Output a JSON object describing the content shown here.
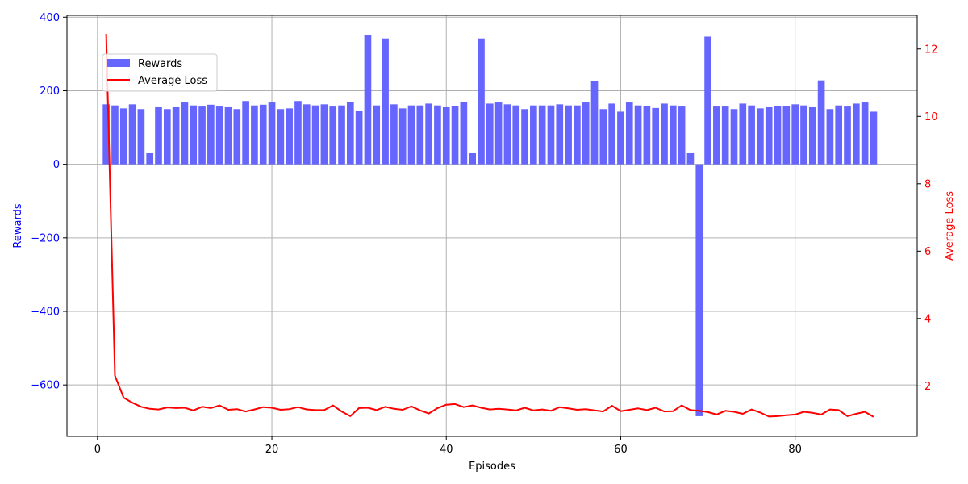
{
  "chart_data": {
    "type": "bar",
    "title": "",
    "xlabel": "Episodes",
    "ylabel_left": "Rewards",
    "ylabel_right": "Average Loss",
    "xlim": [
      -3.5,
      94
    ],
    "ylim_left": [
      -740,
      405
    ],
    "ylim_right": [
      0.5,
      13.0
    ],
    "x_ticks": [
      0,
      20,
      40,
      60,
      80
    ],
    "y_left_ticks": [
      -600,
      -400,
      -200,
      0,
      200,
      400
    ],
    "y_right_ticks": [
      2,
      4,
      6,
      8,
      10,
      12
    ],
    "grid": true,
    "legend_position": "upper-left",
    "colors": {
      "bars": "#6666ff",
      "loss_line": "#ff0000",
      "left_axis": "#0000ff",
      "right_axis": "#ff0000",
      "grid": "#b0b0b0"
    },
    "episodes": [
      1,
      2,
      3,
      4,
      5,
      6,
      7,
      8,
      9,
      10,
      11,
      12,
      13,
      14,
      15,
      16,
      17,
      18,
      19,
      20,
      21,
      22,
      23,
      24,
      25,
      26,
      27,
      28,
      29,
      30,
      31,
      32,
      33,
      34,
      35,
      36,
      37,
      38,
      39,
      40,
      41,
      42,
      43,
      44,
      45,
      46,
      47,
      48,
      49,
      50,
      51,
      52,
      53,
      54,
      55,
      56,
      57,
      58,
      59,
      60,
      61,
      62,
      63,
      64,
      65,
      66,
      67,
      68,
      69,
      70,
      71,
      72,
      73,
      74,
      75,
      76,
      77,
      78,
      79,
      80,
      81,
      82,
      83,
      84,
      85,
      86,
      87,
      88,
      89
    ],
    "series": [
      {
        "name": "Rewards",
        "axis": "left",
        "kind": "bar",
        "values": [
          163,
          160,
          152,
          163,
          150,
          30,
          155,
          150,
          155,
          168,
          160,
          157,
          162,
          157,
          155,
          150,
          172,
          160,
          162,
          168,
          150,
          152,
          172,
          163,
          160,
          163,
          157,
          160,
          170,
          145,
          352,
          160,
          342,
          163,
          152,
          160,
          160,
          165,
          160,
          155,
          158,
          170,
          30,
          342,
          165,
          168,
          163,
          160,
          150,
          160,
          160,
          160,
          163,
          160,
          160,
          168,
          227,
          150,
          165,
          143,
          168,
          160,
          158,
          153,
          165,
          160,
          157,
          30,
          -685,
          347,
          157,
          157,
          150,
          165,
          160,
          152,
          155,
          158,
          158,
          163,
          160,
          155,
          228,
          150,
          160,
          157,
          165,
          168,
          143
        ]
      },
      {
        "name": "Average Loss",
        "axis": "right",
        "kind": "line",
        "values": [
          12.45,
          2.3,
          1.65,
          1.5,
          1.38,
          1.32,
          1.3,
          1.36,
          1.34,
          1.35,
          1.27,
          1.38,
          1.34,
          1.42,
          1.29,
          1.31,
          1.24,
          1.3,
          1.37,
          1.35,
          1.29,
          1.31,
          1.37,
          1.3,
          1.28,
          1.28,
          1.42,
          1.24,
          1.1,
          1.34,
          1.35,
          1.28,
          1.38,
          1.32,
          1.29,
          1.39,
          1.27,
          1.18,
          1.34,
          1.44,
          1.46,
          1.37,
          1.42,
          1.35,
          1.3,
          1.32,
          1.3,
          1.27,
          1.35,
          1.27,
          1.3,
          1.26,
          1.37,
          1.33,
          1.29,
          1.31,
          1.27,
          1.24,
          1.41,
          1.25,
          1.29,
          1.33,
          1.28,
          1.35,
          1.24,
          1.25,
          1.42,
          1.28,
          1.26,
          1.22,
          1.15,
          1.26,
          1.23,
          1.17,
          1.3,
          1.21,
          1.09,
          1.1,
          1.13,
          1.15,
          1.23,
          1.2,
          1.15,
          1.3,
          1.28,
          1.1,
          1.17,
          1.23,
          1.08
        ]
      }
    ]
  }
}
